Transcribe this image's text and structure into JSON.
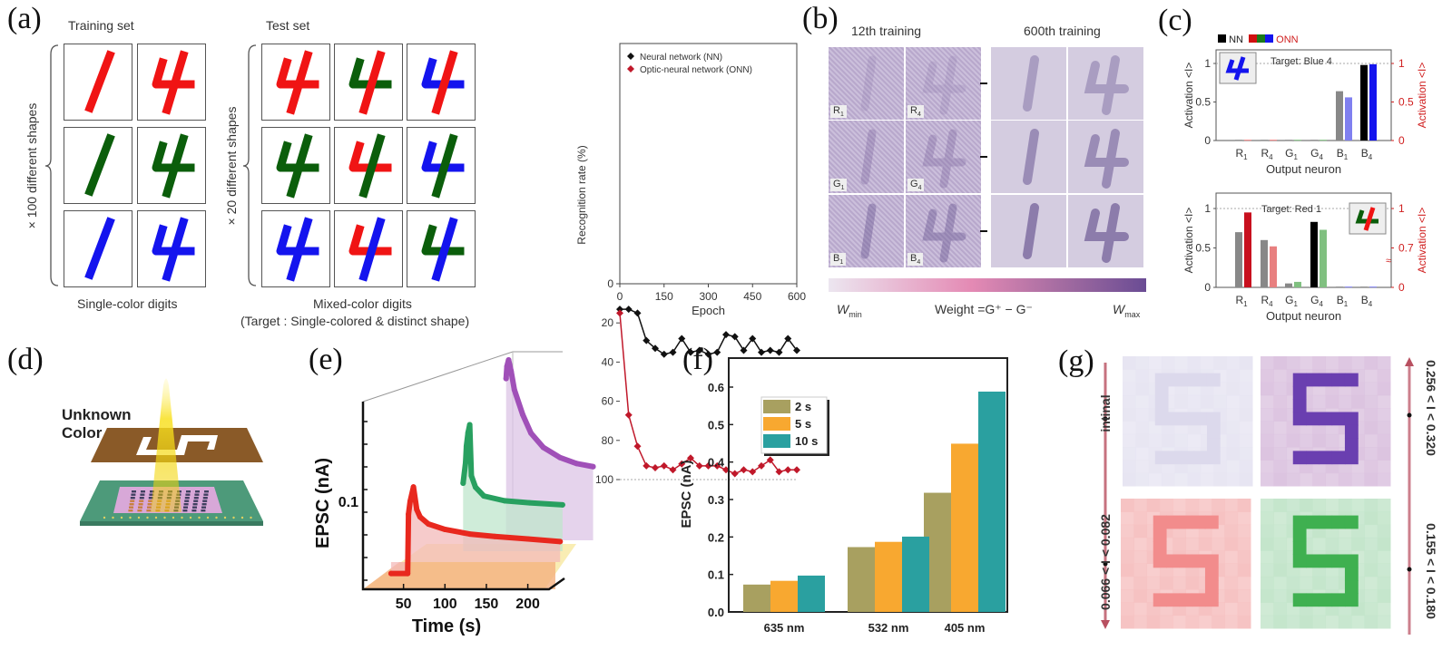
{
  "panels": {
    "a": {
      "label": "(a)",
      "training_title": "Training set",
      "test_title": "Test set",
      "training_side": "× 100 different shapes",
      "test_side": "× 20 different shapes",
      "training_caption": "Single-color digits",
      "test_caption": "Mixed-color digits",
      "test_caption2": "(Target : Single-colored & distinct shape)",
      "training_cells": [
        {
          "digit": "1",
          "stem": "red"
        },
        {
          "digit": "4",
          "stem": "red",
          "arms": "red"
        },
        {
          "digit": "1",
          "stem": "green"
        },
        {
          "digit": "4",
          "stem": "green",
          "arms": "green"
        },
        {
          "digit": "1",
          "stem": "blue"
        },
        {
          "digit": "4",
          "stem": "blue",
          "arms": "blue"
        }
      ],
      "test_cells": [
        {
          "digit": "4",
          "arms": "red",
          "stem": "red"
        },
        {
          "digit": "4",
          "arms": "green",
          "stem": "red"
        },
        {
          "digit": "4",
          "arms": "blue",
          "stem": "red"
        },
        {
          "digit": "4",
          "arms": "green",
          "stem": "green"
        },
        {
          "digit": "4",
          "arms": "red",
          "stem": "green"
        },
        {
          "digit": "4",
          "arms": "blue",
          "stem": "green"
        },
        {
          "digit": "4",
          "arms": "blue",
          "stem": "blue"
        },
        {
          "digit": "4",
          "arms": "red",
          "stem": "blue"
        },
        {
          "digit": "4",
          "arms": "green",
          "stem": "blue"
        }
      ],
      "digit_colors": {
        "red": "#f01414",
        "green": "#0b5e0b",
        "blue": "#1414ee"
      }
    },
    "b": {
      "label": "(b)",
      "col1_title": "12th training",
      "col2_title": "600th training",
      "neuron_labels": [
        "R1",
        "R4",
        "G1",
        "G4",
        "B1",
        "B4"
      ],
      "neuron_labels_display": [
        [
          "R",
          "1"
        ],
        [
          "R",
          "4"
        ],
        [
          "G",
          "1"
        ],
        [
          "G",
          "4"
        ],
        [
          "B",
          "1"
        ],
        [
          "B",
          "4"
        ]
      ],
      "colorbar_min": "W",
      "colorbar_min_sub": "min",
      "colorbar_max": "W",
      "colorbar_max_sub": "max",
      "colorbar_title": "Weight =G⁺ − G⁻",
      "colorbar_colors": [
        "#ece6f0",
        "#e88ab4",
        "#6a4c94"
      ]
    },
    "c": {
      "label": "(c)",
      "legend_nn": "NN",
      "legend_onn": "ONN",
      "legend_colors": {
        "nn": "#000000",
        "onn": [
          "#d01010",
          "#1a7a1a",
          "#1414ee"
        ],
        "onn_text": "#d02020"
      }
    },
    "d": {
      "label": "(d)",
      "annotation": "Unknown Color"
    },
    "e": {
      "label": "(e)"
    },
    "f": {
      "label": "(f)"
    },
    "g": {
      "label": "(g)",
      "left_top": "intinal",
      "left_bottom": "0.066 < I < 0.082",
      "right_top": "0.256 < I < 0.320",
      "right_bottom": "0.155 < I < 0.180",
      "tile_colors": [
        {
          "base": "#e7e5f2",
          "stroke": "#dcd9ec"
        },
        {
          "base": "#dcc4e0",
          "stroke": "#6a3fb0"
        },
        {
          "base": "#f6c2c2",
          "stroke": "#f28c8c"
        },
        {
          "base": "#c4e5cb",
          "stroke": "#3fb050"
        }
      ]
    }
  },
  "chart_data": [
    {
      "id": "a-recognition",
      "type": "line",
      "xlabel": "Epoch",
      "ylabel": "Recognition rate (%)",
      "xlim": [
        0,
        600
      ],
      "ylim": [
        0,
        100
      ],
      "xticks": [
        0,
        150,
        300,
        450,
        600
      ],
      "yticks": [
        0,
        20,
        40,
        60,
        80,
        100
      ],
      "legend": "top-left",
      "reference_line": 100,
      "x": [
        0,
        30,
        60,
        90,
        120,
        150,
        180,
        210,
        240,
        270,
        300,
        330,
        360,
        390,
        420,
        450,
        480,
        510,
        540,
        570,
        600
      ],
      "series": [
        {
          "name": "Neural network (NN)",
          "color": "#111111",
          "marker": "diamond",
          "values": [
            13,
            13,
            15,
            29,
            33,
            36,
            35,
            28,
            35,
            34,
            36,
            35,
            26,
            27,
            34,
            28,
            35,
            34,
            35,
            28,
            34
          ]
        },
        {
          "name": "Optic-neural network (ONN)",
          "color": "#c0182a",
          "marker": "diamond",
          "values": [
            15,
            67,
            83,
            93,
            94,
            93,
            95,
            92,
            89,
            93,
            93,
            93,
            95,
            97,
            95,
            96,
            93,
            90,
            96,
            95,
            95
          ]
        }
      ]
    },
    {
      "id": "c-top",
      "type": "bar",
      "title": "Target: Blue 4",
      "xlabel": "Output neuron",
      "ylabel": "Activation <I>",
      "ylabel_right": "Activation <I>",
      "categories": [
        "R1",
        "R4",
        "G1",
        "G4",
        "B1",
        "B4"
      ],
      "ylim": [
        0,
        1.15
      ],
      "yticks": [
        0,
        0.5,
        1
      ],
      "yticks_right": [
        0,
        0.5,
        1
      ],
      "series": [
        {
          "name": "NN",
          "values": [
            0.01,
            0.01,
            0.01,
            0.01,
            0.64,
            0.98
          ],
          "colors": [
            "#888",
            "#888",
            "#888",
            "#888",
            "#888",
            "#000"
          ]
        },
        {
          "name": "ONN",
          "values": [
            0.01,
            0.01,
            0.01,
            0.01,
            0.56,
            0.99
          ],
          "colors": [
            "#f08080",
            "#f08080",
            "#80c080",
            "#80c080",
            "#8080f0",
            "#1414ee"
          ]
        }
      ]
    },
    {
      "id": "c-bottom",
      "type": "bar",
      "title": "Target: Red 1",
      "xlabel": "Output neuron",
      "ylabel": "Activation <I>",
      "ylabel_right": "Activation <I>",
      "categories": [
        "R1",
        "R4",
        "G1",
        "G4",
        "B1",
        "B4"
      ],
      "ylim": [
        0,
        1.15
      ],
      "yticks": [
        0,
        0.5,
        1
      ],
      "yticks_right": [
        0,
        0.7,
        1
      ],
      "series": [
        {
          "name": "NN",
          "values": [
            0.7,
            0.6,
            0.05,
            0.83,
            0.01,
            0.01
          ],
          "colors": [
            "#888",
            "#888",
            "#888",
            "#000",
            "#888",
            "#888"
          ]
        },
        {
          "name": "ONN",
          "values": [
            0.95,
            0.52,
            0.07,
            0.73,
            0.01,
            0.01
          ],
          "colors": [
            "#c8101e",
            "#e88080",
            "#80c080",
            "#80c080",
            "#8080f0",
            "#8080f0"
          ]
        }
      ]
    },
    {
      "id": "e-epsc",
      "type": "line",
      "xlabel": "Time (s)",
      "ylabel": "EPSC (nA)",
      "xticks": [
        50,
        100,
        150,
        200
      ],
      "yticks": [
        0.1
      ],
      "yscale": "log",
      "series": [
        {
          "color": "#e8281e",
          "fill": "#f3b9b9",
          "x": [
            35,
            55,
            56,
            58,
            62,
            66,
            70,
            80,
            100,
            130,
            160,
            200,
            239
          ],
          "values": [
            0.04,
            0.04,
            0.085,
            0.1,
            0.12,
            0.09,
            0.082,
            0.075,
            0.07,
            0.066,
            0.064,
            0.062,
            0.06
          ]
        },
        {
          "color": "#28a060",
          "fill": "#bfe6cc",
          "x": [
            100,
            103,
            104,
            106,
            108,
            110,
            115,
            125,
            150,
            180,
            220
          ],
          "values": [
            0.1,
            0.13,
            0.16,
            0.19,
            0.21,
            0.11,
            0.095,
            0.085,
            0.08,
            0.078,
            0.076
          ]
        },
        {
          "color": "#a050b8",
          "fill": "#dcc4e6",
          "x": [
            130,
            131,
            133,
            136,
            140,
            150,
            160,
            175,
            195,
            215,
            235
          ],
          "values": [
            0.3,
            0.35,
            0.38,
            0.33,
            0.26,
            0.19,
            0.15,
            0.125,
            0.11,
            0.102,
            0.098
          ]
        }
      ]
    },
    {
      "id": "f-epsc",
      "type": "bar",
      "ylabel": "EPSC (nA)",
      "ylim": [
        0,
        0.65
      ],
      "yticks": [
        0.0,
        0.1,
        0.2,
        0.3,
        0.4,
        0.5,
        0.6
      ],
      "categories": [
        "635 nm",
        "532 nm",
        "405 nm"
      ],
      "legend": "top-left",
      "series": [
        {
          "name": "2 s",
          "color": "#a8a060",
          "values": [
            0.073,
            0.173,
            0.318
          ]
        },
        {
          "name": "5 s",
          "color": "#f8a830",
          "values": [
            0.083,
            0.187,
            0.449
          ]
        },
        {
          "name": "10 s",
          "color": "#2aa0a0",
          "values": [
            0.097,
            0.201,
            0.588
          ]
        }
      ]
    }
  ]
}
